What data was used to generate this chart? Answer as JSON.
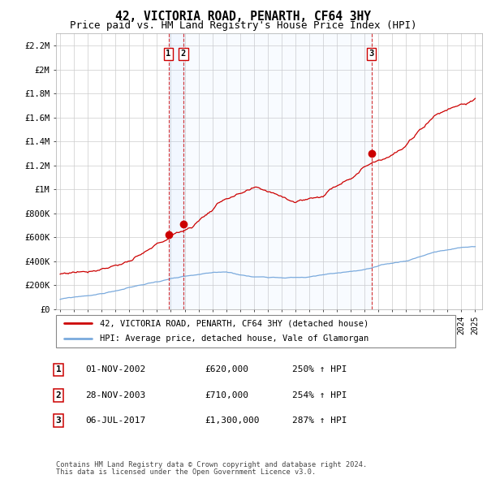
{
  "title": "42, VICTORIA ROAD, PENARTH, CF64 3HY",
  "subtitle": "Price paid vs. HM Land Registry's House Price Index (HPI)",
  "title_fontsize": 10.5,
  "subtitle_fontsize": 9,
  "ylim": [
    0,
    2300000
  ],
  "yticks": [
    0,
    200000,
    400000,
    600000,
    800000,
    1000000,
    1200000,
    1400000,
    1600000,
    1800000,
    2000000,
    2200000
  ],
  "ytick_labels": [
    "£0",
    "£200K",
    "£400K",
    "£600K",
    "£800K",
    "£1M",
    "£1.2M",
    "£1.4M",
    "£1.6M",
    "£1.8M",
    "£2M",
    "£2.2M"
  ],
  "xlim_start": 1994.7,
  "xlim_end": 2025.5,
  "transactions": [
    {
      "label": "1",
      "date_str": "01-NOV-2002",
      "year": 2002.83,
      "price": 620000,
      "price_str": "£620,000",
      "pct": "250%",
      "color": "#cc0000"
    },
    {
      "label": "2",
      "date_str": "28-NOV-2003",
      "year": 2003.9,
      "price": 710000,
      "price_str": "£710,000",
      "pct": "254%",
      "color": "#cc0000"
    },
    {
      "label": "3",
      "date_str": "06-JUL-2017",
      "year": 2017.5,
      "price": 1300000,
      "price_str": "£1,300,000",
      "pct": "287%",
      "color": "#cc0000"
    }
  ],
  "legend_line1": "42, VICTORIA ROAD, PENARTH, CF64 3HY (detached house)",
  "legend_line2": "HPI: Average price, detached house, Vale of Glamorgan",
  "footer1": "Contains HM Land Registry data © Crown copyright and database right 2024.",
  "footer2": "This data is licensed under the Open Government Licence v3.0.",
  "property_line_color": "#cc0000",
  "hpi_line_color": "#7aaadd",
  "shade_color": "#ddeeff",
  "background_color": "#ffffff",
  "grid_color": "#cccccc"
}
